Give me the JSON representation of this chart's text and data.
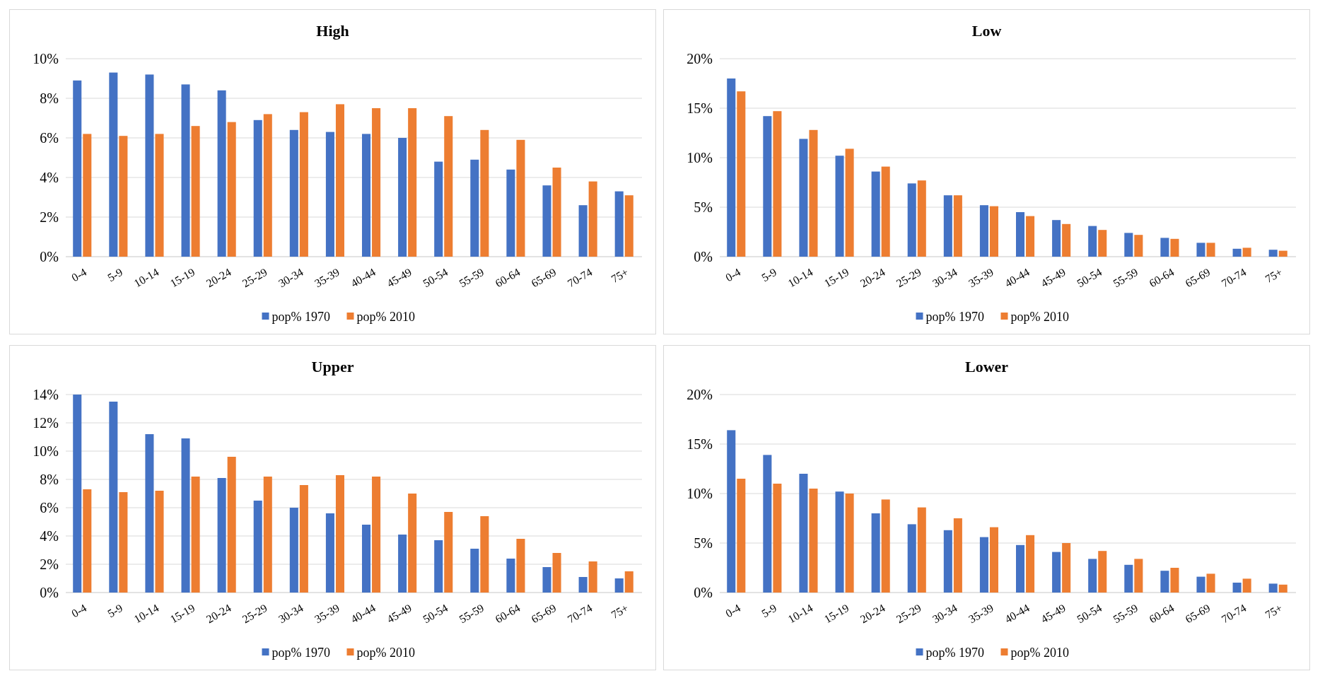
{
  "chart_data": [
    {
      "type": "bar",
      "title": "High",
      "categories": [
        "0-4",
        "5-9",
        "10-14",
        "15-19",
        "20-24",
        "25-29",
        "30-34",
        "35-39",
        "40-44",
        "45-49",
        "50-54",
        "55-59",
        "60-64",
        "65-69",
        "70-74",
        "75+"
      ],
      "ylim": [
        0,
        10
      ],
      "yticks": [
        {
          "value": 0,
          "label": "0%"
        },
        {
          "value": 2,
          "label": "2%"
        },
        {
          "value": 4,
          "label": "4%"
        },
        {
          "value": 6,
          "label": "6%"
        },
        {
          "value": 8,
          "label": "8%"
        },
        {
          "value": 10,
          "label": "10%"
        }
      ],
      "grid": "y",
      "legend": "bottom",
      "series": [
        {
          "name": "pop% 1970",
          "color": "#4472c4",
          "values": [
            8.9,
            9.3,
            9.2,
            8.7,
            8.4,
            6.9,
            6.4,
            6.3,
            6.2,
            6.0,
            4.8,
            4.9,
            4.4,
            3.6,
            2.6,
            3.3
          ]
        },
        {
          "name": "pop% 2010",
          "color": "#ed7d31",
          "values": [
            6.2,
            6.1,
            6.2,
            6.6,
            6.8,
            7.2,
            7.3,
            7.7,
            7.5,
            7.5,
            7.1,
            6.4,
            5.9,
            4.5,
            3.8,
            3.1
          ]
        }
      ]
    },
    {
      "type": "bar",
      "title": "Low",
      "categories": [
        "0-4",
        "5-9",
        "10-14",
        "15-19",
        "20-24",
        "25-29",
        "30-34",
        "35-39",
        "40-44",
        "45-49",
        "50-54",
        "55-59",
        "60-64",
        "65-69",
        "70-74",
        "75+"
      ],
      "ylim": [
        0,
        20
      ],
      "yticks": [
        {
          "value": 0,
          "label": "0%"
        },
        {
          "value": 5,
          "label": "5%"
        },
        {
          "value": 10,
          "label": "10%"
        },
        {
          "value": 15,
          "label": "15%"
        },
        {
          "value": 20,
          "label": "20%"
        }
      ],
      "grid": "y",
      "legend": "bottom",
      "series": [
        {
          "name": "pop% 1970",
          "color": "#4472c4",
          "values": [
            18.0,
            14.2,
            11.9,
            10.2,
            8.6,
            7.4,
            6.2,
            5.2,
            4.5,
            3.7,
            3.1,
            2.4,
            1.9,
            1.4,
            0.8,
            0.7
          ]
        },
        {
          "name": "pop% 2010",
          "color": "#ed7d31",
          "values": [
            16.7,
            14.7,
            12.8,
            10.9,
            9.1,
            7.7,
            6.2,
            5.1,
            4.1,
            3.3,
            2.7,
            2.2,
            1.8,
            1.4,
            0.9,
            0.6
          ]
        }
      ]
    },
    {
      "type": "bar",
      "title": "Upper",
      "categories": [
        "0-4",
        "5-9",
        "10-14",
        "15-19",
        "20-24",
        "25-29",
        "30-34",
        "35-39",
        "40-44",
        "45-49",
        "50-54",
        "55-59",
        "60-64",
        "65-69",
        "70-74",
        "75+"
      ],
      "ylim": [
        0,
        14
      ],
      "yticks": [
        {
          "value": 0,
          "label": "0%"
        },
        {
          "value": 2,
          "label": "2%"
        },
        {
          "value": 4,
          "label": "4%"
        },
        {
          "value": 6,
          "label": "6%"
        },
        {
          "value": 8,
          "label": "8%"
        },
        {
          "value": 10,
          "label": "10%"
        },
        {
          "value": 12,
          "label": "12%"
        },
        {
          "value": 14,
          "label": "14%"
        }
      ],
      "grid": "y",
      "legend": "bottom",
      "series": [
        {
          "name": "pop% 1970",
          "color": "#4472c4",
          "values": [
            14.0,
            13.5,
            11.2,
            10.9,
            8.1,
            6.5,
            6.0,
            5.6,
            4.8,
            4.1,
            3.7,
            3.1,
            2.4,
            1.8,
            1.1,
            1.0
          ]
        },
        {
          "name": "pop% 2010",
          "color": "#ed7d31",
          "values": [
            7.3,
            7.1,
            7.2,
            8.2,
            9.6,
            8.2,
            7.6,
            8.3,
            8.2,
            7.0,
            5.7,
            5.4,
            3.8,
            2.8,
            2.2,
            1.5
          ]
        }
      ]
    },
    {
      "type": "bar",
      "title": "Lower",
      "categories": [
        "0-4",
        "5-9",
        "10-14",
        "15-19",
        "20-24",
        "25-29",
        "30-34",
        "35-39",
        "40-44",
        "45-49",
        "50-54",
        "55-59",
        "60-64",
        "65-69",
        "70-74",
        "75+"
      ],
      "ylim": [
        0,
        20
      ],
      "yticks": [
        {
          "value": 0,
          "label": "0%"
        },
        {
          "value": 5,
          "label": "5%"
        },
        {
          "value": 10,
          "label": "10%"
        },
        {
          "value": 15,
          "label": "15%"
        },
        {
          "value": 20,
          "label": "20%"
        }
      ],
      "grid": "y",
      "legend": "bottom",
      "series": [
        {
          "name": "pop% 1970",
          "color": "#4472c4",
          "values": [
            16.4,
            13.9,
            12.0,
            10.2,
            8.0,
            6.9,
            6.3,
            5.6,
            4.8,
            4.1,
            3.4,
            2.8,
            2.2,
            1.6,
            1.0,
            0.9
          ]
        },
        {
          "name": "pop% 2010",
          "color": "#ed7d31",
          "values": [
            11.5,
            11.0,
            10.5,
            10.0,
            9.4,
            8.6,
            7.5,
            6.6,
            5.8,
            5.0,
            4.2,
            3.4,
            2.5,
            1.9,
            1.4,
            0.8
          ]
        }
      ]
    }
  ]
}
